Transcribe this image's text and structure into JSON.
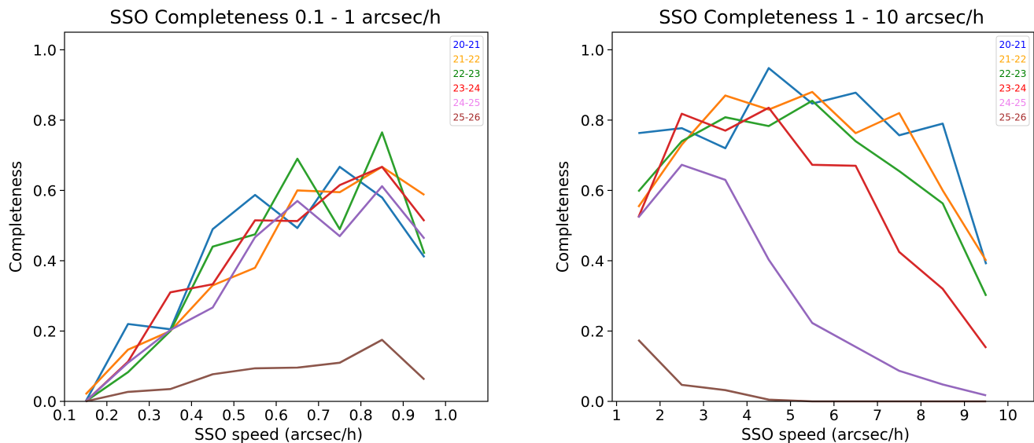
{
  "chart_data": [
    {
      "type": "line",
      "title": "SSO Completeness 0.1 - 1 arcsec/h",
      "xlabel": "SSO speed (arcsec/h)",
      "ylabel": "Completeness",
      "xlim": [
        0.1,
        1.1
      ],
      "ylim": [
        0.0,
        1.05
      ],
      "xticks": [
        "0.1",
        "0.2",
        "0.3",
        "0.4",
        "0.5",
        "0.6",
        "0.7",
        "0.8",
        "0.9",
        "1.0"
      ],
      "xtick_values": [
        0.1,
        0.2,
        0.3,
        0.4,
        0.5,
        0.6,
        0.7,
        0.8,
        0.9,
        1.0
      ],
      "yticks": [
        "0.0",
        "0.2",
        "0.4",
        "0.6",
        "0.8",
        "1.0"
      ],
      "ytick_values": [
        0.0,
        0.2,
        0.4,
        0.6,
        0.8,
        1.0
      ],
      "grid": false,
      "legend_position": "top-right",
      "x": [
        0.15,
        0.25,
        0.35,
        0.45,
        0.55,
        0.65,
        0.75,
        0.85,
        0.95
      ],
      "series": [
        {
          "name": "20-21",
          "line_color": "#1f77b4",
          "legend_color": "#0000ff",
          "values": [
            0.0,
            0.22,
            0.205,
            0.49,
            0.587,
            0.493,
            0.667,
            0.58,
            0.41
          ]
        },
        {
          "name": "21-22",
          "line_color": "#ff7f0e",
          "legend_color": "#ffa500",
          "values": [
            0.02,
            0.147,
            0.2,
            0.33,
            0.38,
            0.6,
            0.595,
            0.667,
            0.587
          ]
        },
        {
          "name": "22-23",
          "line_color": "#2ca02c",
          "legend_color": "#008000",
          "values": [
            0.0,
            0.083,
            0.2,
            0.44,
            0.475,
            0.69,
            0.49,
            0.765,
            0.42
          ]
        },
        {
          "name": "23-24",
          "line_color": "#d62728",
          "legend_color": "#ff0000",
          "values": [
            0.0,
            0.113,
            0.31,
            0.333,
            0.515,
            0.513,
            0.615,
            0.667,
            0.513
          ]
        },
        {
          "name": "24-25",
          "line_color": "#9467bd",
          "legend_color": "#ee82ee",
          "values": [
            0.0,
            0.11,
            0.203,
            0.267,
            0.467,
            0.57,
            0.47,
            0.612,
            0.463
          ]
        },
        {
          "name": "25-26",
          "line_color": "#8c564b",
          "legend_color": "#a52a2a",
          "values": [
            0.0,
            0.027,
            0.035,
            0.077,
            0.094,
            0.096,
            0.11,
            0.175,
            0.062
          ]
        }
      ]
    },
    {
      "type": "line",
      "title": "SSO Completeness 1 - 10 arcsec/h",
      "xlabel": "SSO speed (arcsec/h)",
      "ylabel": "Completeness",
      "xlim": [
        0.9,
        10.6
      ],
      "ylim": [
        0.0,
        1.05
      ],
      "xticks": [
        "1",
        "2",
        "3",
        "4",
        "5",
        "6",
        "7",
        "8",
        "9",
        "10"
      ],
      "xtick_values": [
        1,
        2,
        3,
        4,
        5,
        6,
        7,
        8,
        9,
        10
      ],
      "yticks": [
        "0.0",
        "0.2",
        "0.4",
        "0.6",
        "0.8",
        "1.0"
      ],
      "ytick_values": [
        0.0,
        0.2,
        0.4,
        0.6,
        0.8,
        1.0
      ],
      "grid": false,
      "legend_position": "top-right",
      "x": [
        1.5,
        2.5,
        3.5,
        4.5,
        5.5,
        6.5,
        7.5,
        8.5,
        9.5
      ],
      "series": [
        {
          "name": "20-21",
          "line_color": "#1f77b4",
          "legend_color": "#0000ff",
          "values": [
            0.763,
            0.777,
            0.72,
            0.948,
            0.847,
            0.878,
            0.757,
            0.79,
            0.39
          ]
        },
        {
          "name": "21-22",
          "line_color": "#ff7f0e",
          "legend_color": "#ffa500",
          "values": [
            0.553,
            0.73,
            0.87,
            0.83,
            0.88,
            0.763,
            0.82,
            0.6,
            0.4
          ]
        },
        {
          "name": "22-23",
          "line_color": "#2ca02c",
          "legend_color": "#008000",
          "values": [
            0.597,
            0.74,
            0.808,
            0.783,
            0.855,
            0.74,
            0.655,
            0.563,
            0.3
          ]
        },
        {
          "name": "23-24",
          "line_color": "#d62728",
          "legend_color": "#ff0000",
          "values": [
            0.523,
            0.818,
            0.77,
            0.835,
            0.673,
            0.67,
            0.425,
            0.32,
            0.152
          ]
        },
        {
          "name": "24-25",
          "line_color": "#9467bd",
          "legend_color": "#ee82ee",
          "values": [
            0.523,
            0.673,
            0.63,
            0.403,
            0.223,
            0.155,
            0.087,
            0.048,
            0.017
          ]
        },
        {
          "name": "25-26",
          "line_color": "#8c564b",
          "legend_color": "#a52a2a",
          "values": [
            0.175,
            0.047,
            0.032,
            0.005,
            0.0,
            0.0,
            0.0,
            0.0,
            0.0
          ]
        }
      ]
    }
  ]
}
